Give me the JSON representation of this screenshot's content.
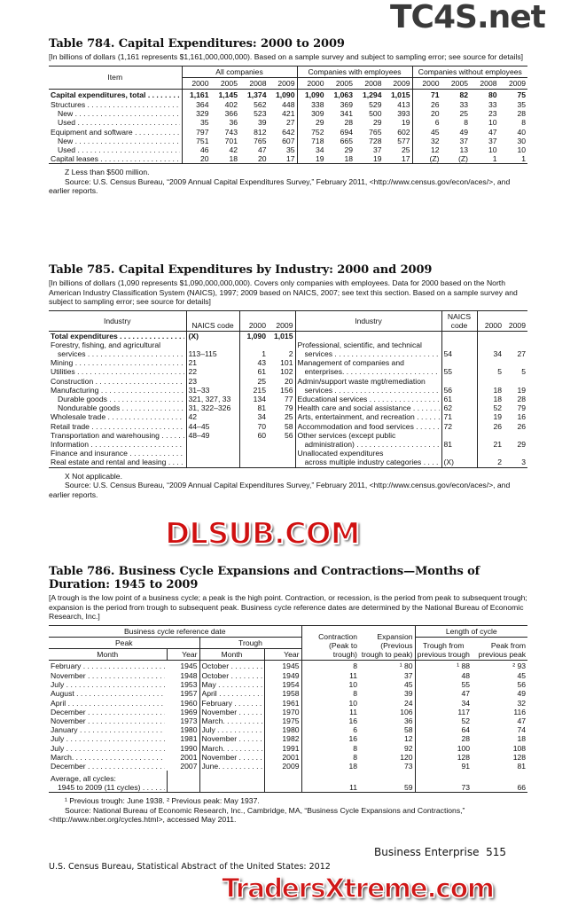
{
  "t784": {
    "title": "Table 784. Capital Expenditures: 2000 to 2009",
    "note": "[In billions of dollars (1,161 represents $1,161,000,000,000). Based on a sample survey and subject to sampling error; see source for details]",
    "item_header": "Item",
    "groups": [
      "All companies",
      "Companies with employees",
      "Companies without employees"
    ],
    "years": [
      "2000",
      "2005",
      "2008",
      "2009"
    ],
    "rows": [
      {
        "label": "Capital expenditures, total",
        "bold": true,
        "v": [
          "1,161",
          "1,145",
          "1,374",
          "1,090",
          "1,090",
          "1,063",
          "1,294",
          "1,015",
          "71",
          "82",
          "80",
          "75"
        ]
      },
      {
        "label": "Structures",
        "v": [
          "364",
          "402",
          "562",
          "448",
          "338",
          "369",
          "529",
          "413",
          "26",
          "33",
          "33",
          "35"
        ]
      },
      {
        "label": "New",
        "ind": true,
        "v": [
          "329",
          "366",
          "523",
          "421",
          "309",
          "341",
          "500",
          "393",
          "20",
          "25",
          "23",
          "28"
        ]
      },
      {
        "label": "Used",
        "ind": true,
        "v": [
          "35",
          "36",
          "39",
          "27",
          "29",
          "28",
          "29",
          "19",
          "6",
          "8",
          "10",
          "8"
        ]
      },
      {
        "label": "Equipment and software",
        "v": [
          "797",
          "743",
          "812",
          "642",
          "752",
          "694",
          "765",
          "602",
          "45",
          "49",
          "47",
          "40"
        ]
      },
      {
        "label": "New",
        "ind": true,
        "v": [
          "751",
          "701",
          "765",
          "607",
          "718",
          "665",
          "728",
          "577",
          "32",
          "37",
          "37",
          "30"
        ]
      },
      {
        "label": "Used",
        "ind": true,
        "v": [
          "46",
          "42",
          "47",
          "35",
          "34",
          "29",
          "37",
          "25",
          "12",
          "13",
          "10",
          "10"
        ]
      },
      {
        "label": "Capital leases",
        "v": [
          "20",
          "18",
          "20",
          "17",
          "19",
          "18",
          "19",
          "17",
          "(Z)",
          "(Z)",
          "1",
          "1"
        ]
      }
    ],
    "footnote": "Z Less than $500 million.",
    "source": "Source: U.S. Census Bureau, “2009 Annual Capital Expenditures Survey,” February 2011, <http://www.census.gov/econ/aces/>, and earlier reports."
  },
  "t785": {
    "title": "Table 785. Capital Expenditures by Industry: 2000 and 2009",
    "note": "[In billions of dollars (1,090 represents $1,090,000,000,000). Covers only companies with employees. Data for 2000 based on the North American Industry Classification System (NAICS), 1997; 2009 based on NAICS, 2007; see text this section. Based on a sample survey and subject to sampling error; see source for details]",
    "headers": {
      "industry": "Industry",
      "naics": "NAICS code",
      "y2000": "2000",
      "y2009": "2009"
    },
    "rows": [
      {
        "l": {
          "label": "Total expenditures",
          "bold": true,
          "lead": true,
          "code": "(X)",
          "a": "1,090",
          "b": "1,015"
        },
        "r": {
          "label": ""
        }
      },
      {
        "l": {
          "label": "Forestry, fishing, and agricultural"
        },
        "r": {
          "label": "Professional, scientific, and technical"
        }
      },
      {
        "l": {
          "label": "services",
          "ind": true,
          "lead": true,
          "code": "113–115",
          "a": "1",
          "b": "2"
        },
        "r": {
          "label": "services",
          "ind": true,
          "lead": true,
          "code": "54",
          "a": "34",
          "b": "27"
        }
      },
      {
        "l": {
          "label": "Mining",
          "lead": true,
          "code": "21",
          "a": "43",
          "b": "101"
        },
        "r": {
          "label": "Management of companies and"
        }
      },
      {
        "l": {
          "label": "Utilities",
          "lead": true,
          "code": "22",
          "a": "61",
          "b": "102"
        },
        "r": {
          "label": "enterprises.",
          "ind": true,
          "lead": true,
          "code": "55",
          "a": "5",
          "b": "5"
        }
      },
      {
        "l": {
          "label": "Construction",
          "lead": true,
          "code": "23",
          "a": "25",
          "b": "20"
        },
        "r": {
          "label": "Admin/support waste mgt/remediation"
        }
      },
      {
        "l": {
          "label": "Manufacturing",
          "lead": true,
          "code": "31–33",
          "a": "215",
          "b": "156"
        },
        "r": {
          "label": "services",
          "ind": true,
          "lead": true,
          "code": "56",
          "a": "18",
          "b": "19"
        }
      },
      {
        "l": {
          "label": "Durable goods",
          "ind": true,
          "lead": true,
          "code": "321, 327, 33",
          "a": "134",
          "b": "77"
        },
        "r": {
          "label": "Educational services",
          "lead": true,
          "code": "61",
          "a": "18",
          "b": "28"
        }
      },
      {
        "l": {
          "label": "Nondurable goods",
          "ind": true,
          "lead": true,
          "code": "31, 322–326",
          "a": "81",
          "b": "79"
        },
        "r": {
          "label": "Health care and social assistance",
          "lead": true,
          "code": "62",
          "a": "52",
          "b": "79"
        }
      },
      {
        "l": {
          "label": "Wholesale trade",
          "lead": true,
          "code": "42",
          "a": "34",
          "b": "25"
        },
        "r": {
          "label": "Arts, entertainment, and recreation",
          "lead": true,
          "code": "71",
          "a": "19",
          "b": "16"
        }
      },
      {
        "l": {
          "label": "Retail trade",
          "lead": true,
          "code": "44–45",
          "a": "70",
          "b": "58"
        },
        "r": {
          "label": "Accommodation and food services",
          "lead": true,
          "code": "72",
          "a": "26",
          "b": "26"
        }
      },
      {
        "l": {
          "label": "Transportation and warehousing",
          "lead": true,
          "code": "48–49",
          "a": "60",
          "b": "56"
        },
        "r": {
          "label": "Other services (except public"
        }
      },
      {
        "l": {
          "label": "Information",
          "lead": true
        },
        "r": {
          "label": "administration)",
          "ind": true,
          "lead": true,
          "code": "81",
          "a": "21",
          "b": "29"
        }
      },
      {
        "l": {
          "label": "Finance and insurance",
          "lead": true
        },
        "r": {
          "label": "Unallocated expenditures"
        }
      },
      {
        "l": {
          "label": "Real estate and rental and leasing",
          "lead": true
        },
        "r": {
          "label": "across multiple industry categories",
          "ind": true,
          "lead": true,
          "code": "(X)",
          "a": "2",
          "b": "3"
        }
      }
    ],
    "footnote": "X Not applicable.",
    "source": "Source: U.S. Census Bureau, “2009 Annual Capital Expenditures Survey,” February 2011, <http://www.census.gov/econ/aces/>, and earlier reports."
  },
  "t786": {
    "title": "Table 786. Business Cycle Expansions and Contractions—Months of Duration: 1945 to 2009",
    "note": "[A trough is the low point of a business cycle; a peak is the high point. Contraction, or recession, is the period from peak to subsequent trough; expansion is the period from trough to subsequent peak. Business cycle reference dates are determined by the National Bureau of Economic Research, Inc.]",
    "headers": {
      "ref": "Business cycle reference date",
      "peak": "Peak",
      "trough": "Trough",
      "month": "Month",
      "year": "Year",
      "contraction": "Contraction (Peak to trough)",
      "expansion": "Expansion (Previous trough to peak)",
      "length": "Length of cycle",
      "tft": "Trough from previous trough",
      "pfp": "Peak from previous peak"
    },
    "rows": [
      [
        "February",
        "1945",
        "October",
        "1945",
        "8",
        "¹ 80",
        "¹ 88",
        "² 93"
      ],
      [
        "November",
        "1948",
        "October",
        "1949",
        "11",
        "37",
        "48",
        "45"
      ],
      [
        "July",
        "1953",
        "May",
        "1954",
        "10",
        "45",
        "55",
        "56"
      ],
      [
        "August",
        "1957",
        "April",
        "1958",
        "8",
        "39",
        "47",
        "49"
      ],
      [
        "April",
        "1960",
        "February",
        "1961",
        "10",
        "24",
        "34",
        "32"
      ],
      [
        "December",
        "1969",
        "November",
        "1970",
        "11",
        "106",
        "117",
        "116"
      ],
      [
        "November",
        "1973",
        "March.",
        "1975",
        "16",
        "36",
        "52",
        "47"
      ],
      [
        "January",
        "1980",
        "July",
        "1980",
        "6",
        "58",
        "64",
        "74"
      ],
      [
        "July",
        "1981",
        "November",
        "1982",
        "16",
        "12",
        "28",
        "18"
      ],
      [
        "July",
        "1990",
        "March.",
        "1991",
        "8",
        "92",
        "100",
        "108"
      ],
      [
        "March.",
        "2001",
        "November",
        "2001",
        "8",
        "120",
        "128",
        "128"
      ],
      [
        "December",
        "2007",
        "June.",
        "2009",
        "18",
        "73",
        "91",
        "81"
      ]
    ],
    "avg_label1": "Average, all cycles:",
    "avg_label2": "1945 to 2009 (11 cycles)",
    "avg": [
      "11",
      "59",
      "73",
      "66"
    ],
    "footnote": "¹ Previous trough: June 1938. ² Previous peak: May 1937.",
    "source": "Source: National Bureau of Economic Research, Inc., Cambridge, MA, “Business Cycle Expansions and Contractions,” <http://www.nber.org/cycles.html>, accessed May 2011."
  },
  "footer": {
    "left": "U.S. Census Bureau, Statistical Abstract of the United States: 2012",
    "section": "Business Enterprise",
    "page": "515"
  },
  "watermarks": {
    "top": "TC4S.net",
    "middle": "DLSUB.COM",
    "bottom": "TradersXtreme.com"
  }
}
